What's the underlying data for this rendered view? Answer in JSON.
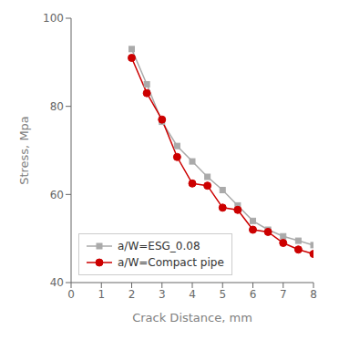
{
  "chart_data": {
    "type": "line",
    "x": [
      2.0,
      2.5,
      3.0,
      3.5,
      4.0,
      4.5,
      5.0,
      5.5,
      6.0,
      6.5,
      7.0,
      7.5,
      8.0
    ],
    "series": [
      {
        "name": "a/W=ESG_0.08",
        "color": "#aaaaaa",
        "marker": "square",
        "values": [
          93.0,
          85.0,
          76.5,
          71.0,
          67.5,
          64.0,
          61.0,
          57.5,
          54.0,
          52.0,
          50.5,
          49.5,
          48.5
        ]
      },
      {
        "name": "a/W=Compact pipe",
        "color": "#cc0000",
        "marker": "circle",
        "values": [
          91.0,
          83.0,
          77.0,
          68.5,
          62.5,
          62.0,
          57.0,
          56.5,
          52.0,
          51.5,
          49.0,
          47.5,
          46.5
        ]
      }
    ],
    "xlabel": "Crack Distance, mm",
    "ylabel": "Stress, Mpa",
    "xlim": [
      0,
      8
    ],
    "ylim": [
      40,
      100
    ],
    "xticks": [
      0,
      1,
      2,
      3,
      4,
      5,
      6,
      7,
      8
    ],
    "yticks": [
      40,
      60,
      80,
      100
    ],
    "legend": "lower left",
    "grid": false
  }
}
